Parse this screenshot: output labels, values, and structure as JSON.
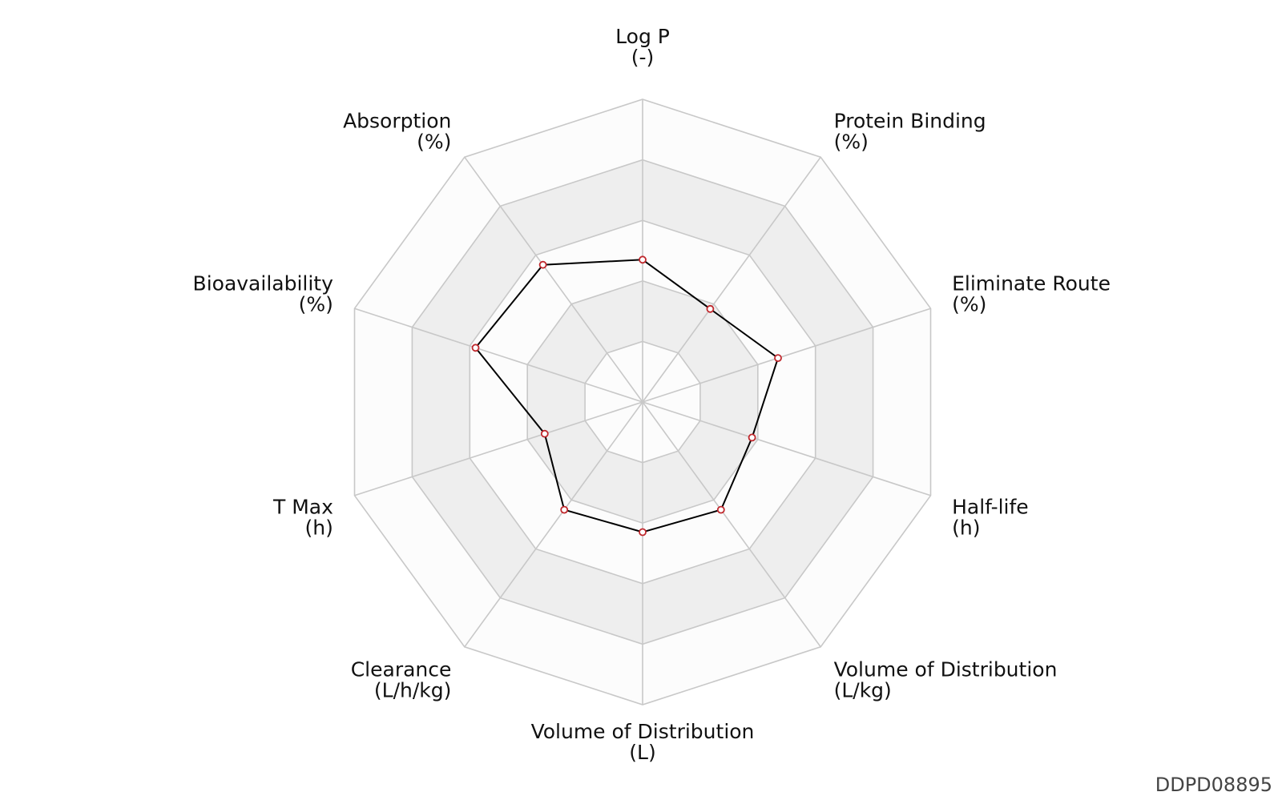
{
  "chart_data": {
    "type": "radar",
    "title": "",
    "axes": [
      {
        "name": "Log P",
        "unit": "(-)"
      },
      {
        "name": "Protein Binding",
        "unit": "(%)"
      },
      {
        "name": "Eliminate Route",
        "unit": "(%)"
      },
      {
        "name": "Half-life",
        "unit": "(h)"
      },
      {
        "name": "Volume of Distribution",
        "unit": "(L/kg)"
      },
      {
        "name": "Volume of Distribution",
        "unit": "(L)"
      },
      {
        "name": "Clearance",
        "unit": "(L/h/kg)"
      },
      {
        "name": "T Max",
        "unit": "(h)"
      },
      {
        "name": "Bioavailability",
        "unit": "(%)"
      },
      {
        "name": "Absorption",
        "unit": "(%)"
      }
    ],
    "rings": 5,
    "range": [
      0,
      1
    ],
    "series": [
      {
        "name": "",
        "values": [
          0.47,
          0.38,
          0.47,
          0.38,
          0.44,
          0.43,
          0.44,
          0.34,
          0.58,
          0.56
        ]
      }
    ],
    "colors": {
      "grid": "#c8c8c8",
      "band_shaded": "#eeeeee",
      "band_light": "#fcfcfc",
      "line": "#000000",
      "marker_edge": "#c0282d",
      "marker_fill": "#ffffff"
    }
  },
  "watermark": "DDPD08895"
}
